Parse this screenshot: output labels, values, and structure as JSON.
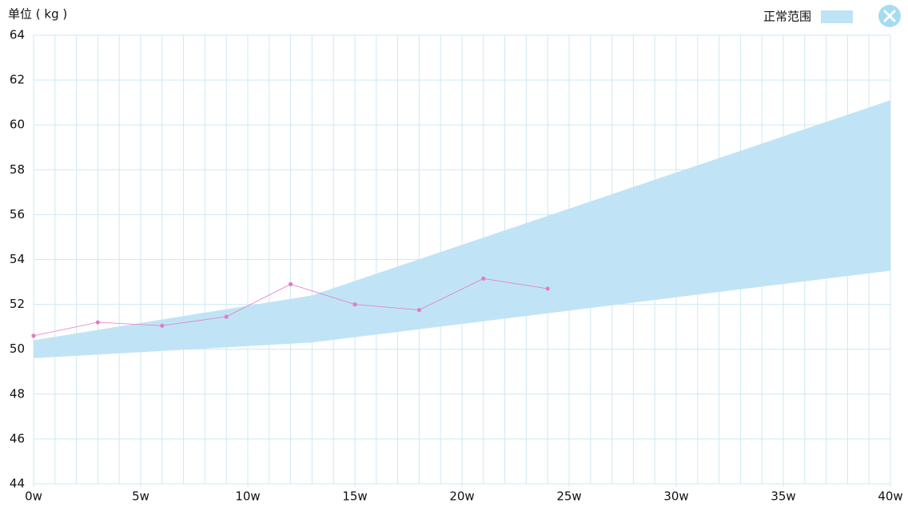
{
  "chart_data": {
    "type": "line",
    "ylabel": "单位 ( kg )",
    "xlim": [
      0,
      40
    ],
    "ylim": [
      44,
      64
    ],
    "xticks": [
      {
        "value": 0,
        "label": "0w"
      },
      {
        "value": 5,
        "label": "5w"
      },
      {
        "value": 10,
        "label": "10w"
      },
      {
        "value": 15,
        "label": "15w"
      },
      {
        "value": 20,
        "label": "20w"
      },
      {
        "value": 25,
        "label": "25w"
      },
      {
        "value": 30,
        "label": "30w"
      },
      {
        "value": 35,
        "label": "35w"
      },
      {
        "value": 40,
        "label": "40w"
      }
    ],
    "xgrid": [
      0,
      1,
      2,
      3,
      4,
      5,
      6,
      7,
      8,
      9,
      10,
      11,
      12,
      13,
      14,
      15,
      16,
      17,
      18,
      19,
      20,
      21,
      22,
      23,
      24,
      25,
      26,
      27,
      28,
      29,
      30,
      31,
      32,
      33,
      34,
      35,
      36,
      37,
      38,
      39,
      40
    ],
    "yticks": [
      44,
      46,
      48,
      50,
      52,
      54,
      56,
      58,
      60,
      62,
      64
    ],
    "grid": true,
    "band": {
      "name": "正常范围",
      "color": "#bde3f4",
      "x": [
        0,
        13,
        40
      ],
      "upper": [
        50.4,
        52.4,
        61.1
      ],
      "lower": [
        49.6,
        50.3,
        53.5
      ]
    },
    "x": [
      0,
      3,
      6,
      9,
      12,
      15,
      18,
      21,
      24
    ],
    "values": [
      50.6,
      51.2,
      51.05,
      51.45,
      52.9,
      52.0,
      51.75,
      53.15,
      52.7
    ],
    "color": "#e67ac8"
  }
}
